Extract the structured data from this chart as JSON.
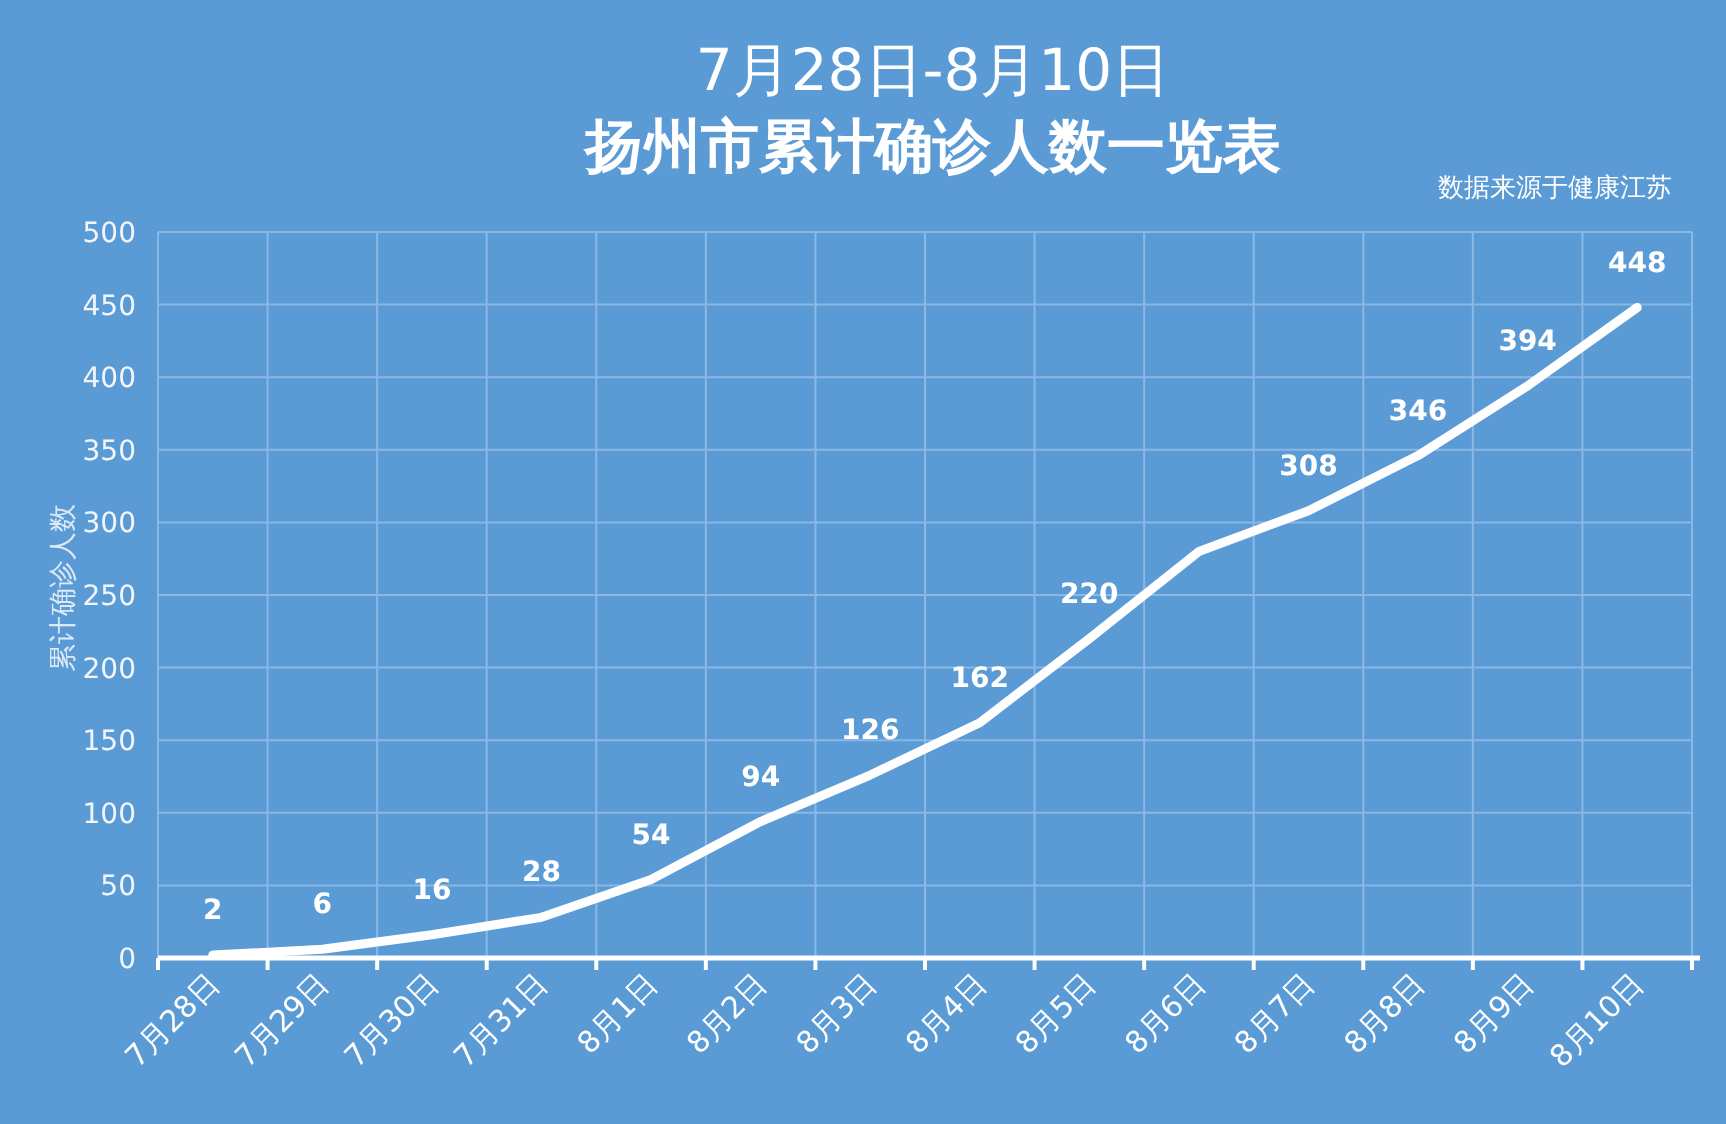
{
  "chart_data": {
    "type": "line",
    "title": "7月28日-8月10日",
    "subtitle": "扬州市累计确诊人数一览表",
    "ylabel": "累计确诊人数",
    "annotations": [
      "数据来源于健康江苏"
    ],
    "categories": [
      "7月28日",
      "7月29日",
      "7月30日",
      "7月31日",
      "8月1日",
      "8月2日",
      "8月3日",
      "8月4日",
      "8月5日",
      "8月6日",
      "8月7日",
      "8月8日",
      "8月9日",
      "8月10日"
    ],
    "values": [
      2,
      6,
      16,
      28,
      54,
      94,
      126,
      162,
      220,
      280,
      308,
      346,
      394,
      448
    ],
    "value_labels": [
      "2",
      "6",
      "16",
      "28",
      "54",
      "94",
      "126",
      "162",
      "220",
      null,
      "308",
      "346",
      "394",
      "448"
    ],
    "color": "#ffffff",
    "line_style": "solid",
    "ylim": [
      0,
      500
    ],
    "yticks": [
      0,
      50,
      100,
      150,
      200,
      250,
      300,
      350,
      400,
      450,
      500
    ],
    "grid": true
  }
}
